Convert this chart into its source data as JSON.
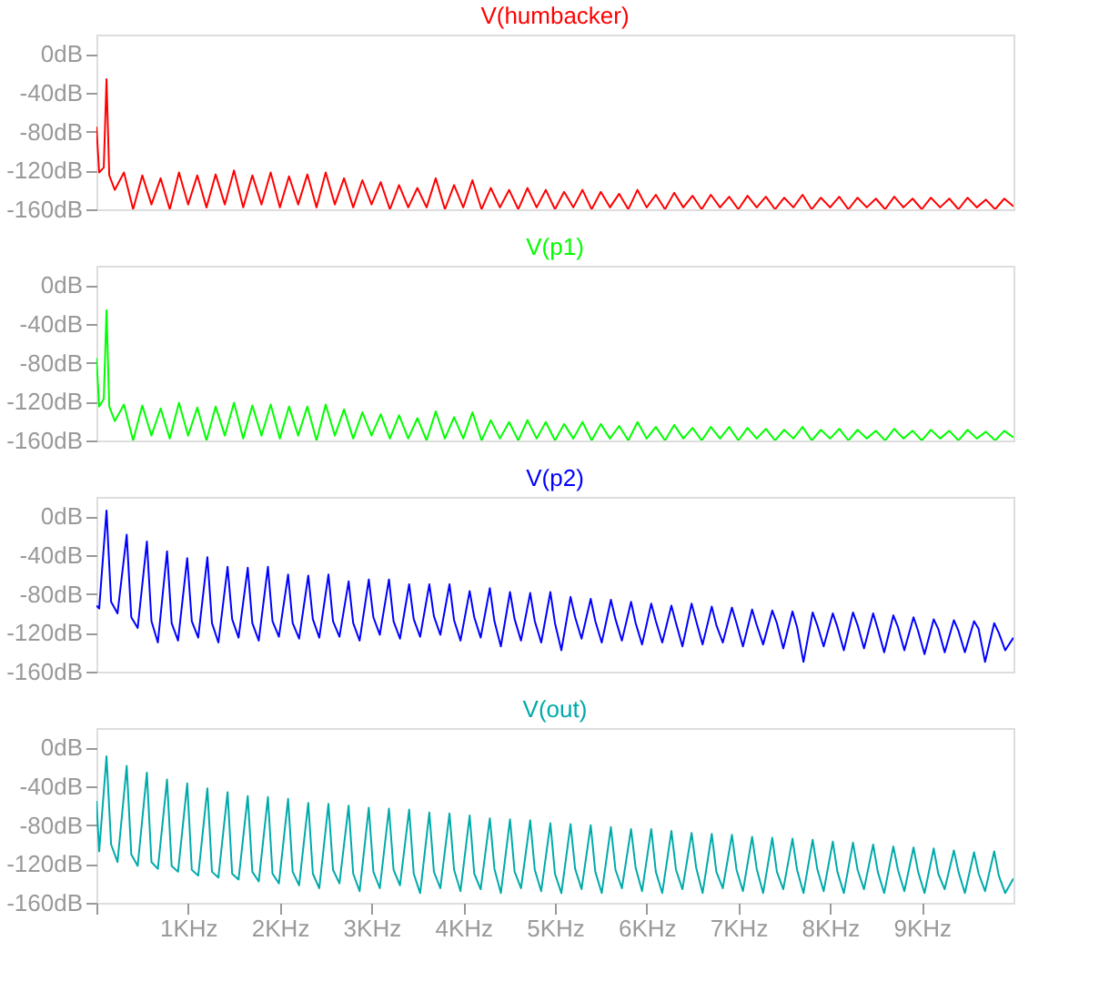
{
  "chart_data": [
    {
      "type": "line",
      "title": "V(humbacker)",
      "xlim": [
        0,
        10
      ],
      "ylim": [
        -160,
        20
      ],
      "yticks": [
        {
          "value": -160,
          "label": "-160dB"
        },
        {
          "value": -120,
          "label": "-120dB"
        },
        {
          "value": -80,
          "label": "-80dB"
        },
        {
          "value": -40,
          "label": "-40dB"
        },
        {
          "value": 0,
          "label": "0dB"
        }
      ],
      "tick_labels": "y",
      "grid": false,
      "line_style": "solid",
      "x": [
        0,
        0.03,
        0.08,
        0.11,
        0.14,
        0.2,
        0.3,
        0.4,
        0.5,
        0.6,
        0.7,
        0.8,
        0.9,
        1.0,
        1.1,
        1.2,
        1.3,
        1.4,
        1.5,
        1.6,
        1.7,
        1.8,
        1.9,
        2.0,
        2.1,
        2.2,
        2.3,
        2.4,
        2.5,
        2.6,
        2.7,
        2.8,
        2.9,
        3.0,
        3.1,
        3.2,
        3.3,
        3.4,
        3.5,
        3.6,
        3.7,
        3.8,
        3.9,
        4.0,
        4.1,
        4.2,
        4.3,
        4.4,
        4.5,
        4.6,
        4.7,
        4.8,
        4.9,
        5.0,
        5.1,
        5.2,
        5.3,
        5.4,
        5.5,
        5.6,
        5.7,
        5.8,
        5.9,
        6.0,
        6.1,
        6.2,
        6.3,
        6.4,
        6.5,
        6.6,
        6.7,
        6.8,
        6.9,
        7.0,
        7.1,
        7.2,
        7.3,
        7.4,
        7.5,
        7.6,
        7.7,
        7.8,
        7.9,
        8.0,
        8.1,
        8.2,
        8.3,
        8.4,
        8.5,
        8.6,
        8.7,
        8.8,
        8.9,
        9.0,
        9.1,
        9.2,
        9.3,
        9.4,
        9.5,
        9.6,
        9.7,
        9.8,
        9.9,
        10.0
      ],
      "series": [
        {
          "color": "#ff0000",
          "values": [
            -75,
            -122,
            -117,
            -26,
            -125,
            -140,
            -122,
            -160,
            -125,
            -155,
            -128,
            -160,
            -122,
            -155,
            -125,
            -158,
            -124,
            -155,
            -120,
            -158,
            -125,
            -155,
            -122,
            -158,
            -126,
            -155,
            -124,
            -158,
            -122,
            -155,
            -128,
            -158,
            -130,
            -155,
            -132,
            -160,
            -135,
            -158,
            -138,
            -158,
            -128,
            -160,
            -135,
            -158,
            -130,
            -160,
            -138,
            -158,
            -140,
            -160,
            -138,
            -158,
            -140,
            -160,
            -142,
            -158,
            -140,
            -160,
            -142,
            -158,
            -144,
            -160,
            -140,
            -158,
            -145,
            -160,
            -143,
            -158,
            -146,
            -160,
            -145,
            -158,
            -147,
            -160,
            -146,
            -158,
            -147,
            -160,
            -148,
            -158,
            -145,
            -160,
            -148,
            -158,
            -147,
            -160,
            -148,
            -158,
            -149,
            -160,
            -147,
            -158,
            -149,
            -160,
            -148,
            -158,
            -149,
            -160,
            -148,
            -158,
            -150,
            -160,
            -149,
            -157
          ]
        }
      ]
    },
    {
      "type": "line",
      "title": "V(p1)",
      "xlim": [
        0,
        10
      ],
      "ylim": [
        -160,
        20
      ],
      "yticks": [
        {
          "value": -160,
          "label": "-160dB"
        },
        {
          "value": -120,
          "label": "-120dB"
        },
        {
          "value": -80,
          "label": "-80dB"
        },
        {
          "value": -40,
          "label": "-40dB"
        },
        {
          "value": 0,
          "label": "0dB"
        }
      ],
      "tick_labels": "y",
      "grid": false,
      "line_style": "solid",
      "x": [
        0,
        0.03,
        0.08,
        0.11,
        0.14,
        0.2,
        0.3,
        0.4,
        0.5,
        0.6,
        0.7,
        0.8,
        0.9,
        1.0,
        1.1,
        1.2,
        1.3,
        1.4,
        1.5,
        1.6,
        1.7,
        1.8,
        1.9,
        2.0,
        2.1,
        2.2,
        2.3,
        2.4,
        2.5,
        2.6,
        2.7,
        2.8,
        2.9,
        3.0,
        3.1,
        3.2,
        3.3,
        3.4,
        3.5,
        3.6,
        3.7,
        3.8,
        3.9,
        4.0,
        4.1,
        4.2,
        4.3,
        4.4,
        4.5,
        4.6,
        4.7,
        4.8,
        4.9,
        5.0,
        5.1,
        5.2,
        5.3,
        5.4,
        5.5,
        5.6,
        5.7,
        5.8,
        5.9,
        6.0,
        6.1,
        6.2,
        6.3,
        6.4,
        6.5,
        6.6,
        6.7,
        6.8,
        6.9,
        7.0,
        7.1,
        7.2,
        7.3,
        7.4,
        7.5,
        7.6,
        7.7,
        7.8,
        7.9,
        8.0,
        8.1,
        8.2,
        8.3,
        8.4,
        8.5,
        8.6,
        8.7,
        8.8,
        8.9,
        9.0,
        9.1,
        9.2,
        9.3,
        9.4,
        9.5,
        9.6,
        9.7,
        9.8,
        9.9,
        10.0
      ],
      "series": [
        {
          "color": "#00ff00",
          "values": [
            -75,
            -125,
            -117,
            -26,
            -125,
            -140,
            -123,
            -160,
            -124,
            -155,
            -127,
            -158,
            -121,
            -155,
            -126,
            -160,
            -125,
            -155,
            -121,
            -158,
            -124,
            -155,
            -123,
            -158,
            -125,
            -155,
            -125,
            -160,
            -123,
            -155,
            -128,
            -158,
            -131,
            -155,
            -133,
            -158,
            -134,
            -158,
            -137,
            -160,
            -130,
            -158,
            -136,
            -158,
            -131,
            -160,
            -139,
            -158,
            -141,
            -160,
            -139,
            -158,
            -141,
            -160,
            -143,
            -158,
            -141,
            -160,
            -143,
            -158,
            -145,
            -160,
            -141,
            -158,
            -146,
            -160,
            -144,
            -158,
            -147,
            -160,
            -146,
            -158,
            -146,
            -160,
            -147,
            -158,
            -148,
            -160,
            -149,
            -158,
            -146,
            -160,
            -149,
            -158,
            -148,
            -160,
            -149,
            -158,
            -150,
            -160,
            -148,
            -158,
            -150,
            -160,
            -149,
            -158,
            -150,
            -160,
            -149,
            -158,
            -151,
            -160,
            -150,
            -157
          ]
        }
      ]
    },
    {
      "type": "line",
      "title": "V(p2)",
      "xlim": [
        0,
        10
      ],
      "ylim": [
        -160,
        20
      ],
      "yticks": [
        {
          "value": -160,
          "label": "-160dB"
        },
        {
          "value": -120,
          "label": "-120dB"
        },
        {
          "value": -80,
          "label": "-80dB"
        },
        {
          "value": -40,
          "label": "-40dB"
        },
        {
          "value": 0,
          "label": "0dB"
        }
      ],
      "tick_labels": "y",
      "grid": false,
      "line_style": "solid",
      "x": [
        0,
        0.03,
        0.11,
        0.16,
        0.23,
        0.33,
        0.38,
        0.45,
        0.55,
        0.6,
        0.67,
        0.77,
        0.82,
        0.89,
        0.99,
        1.04,
        1.11,
        1.21,
        1.26,
        1.33,
        1.43,
        1.48,
        1.55,
        1.65,
        1.7,
        1.77,
        1.87,
        1.92,
        1.99,
        2.09,
        2.14,
        2.21,
        2.31,
        2.36,
        2.43,
        2.53,
        2.58,
        2.65,
        2.75,
        2.8,
        2.87,
        2.97,
        3.02,
        3.09,
        3.19,
        3.24,
        3.31,
        3.41,
        3.46,
        3.53,
        3.63,
        3.68,
        3.75,
        3.85,
        3.9,
        3.97,
        4.07,
        4.12,
        4.19,
        4.29,
        4.34,
        4.41,
        4.51,
        4.56,
        4.63,
        4.73,
        4.78,
        4.85,
        4.95,
        5.0,
        5.07,
        5.17,
        5.22,
        5.29,
        5.39,
        5.44,
        5.51,
        5.61,
        5.66,
        5.73,
        5.83,
        5.88,
        5.95,
        6.05,
        6.1,
        6.17,
        6.27,
        6.32,
        6.39,
        6.49,
        6.54,
        6.61,
        6.71,
        6.76,
        6.83,
        6.93,
        6.98,
        7.05,
        7.15,
        7.2,
        7.27,
        7.37,
        7.42,
        7.49,
        7.59,
        7.64,
        7.71,
        7.81,
        7.86,
        7.93,
        8.03,
        8.08,
        8.15,
        8.25,
        8.3,
        8.37,
        8.47,
        8.52,
        8.59,
        8.69,
        8.74,
        8.81,
        8.91,
        8.96,
        9.03,
        9.13,
        9.18,
        9.25,
        9.35,
        9.4,
        9.47,
        9.57,
        9.62,
        9.69,
        9.79,
        9.84,
        9.91,
        10.0
      ],
      "series": [
        {
          "color": "#0000ff",
          "values": [
            -92,
            -95,
            6,
            -88,
            -100,
            -19,
            -104,
            -115,
            -26,
            -108,
            -130,
            -36,
            -110,
            -128,
            -43,
            -108,
            -125,
            -42,
            -110,
            -130,
            -52,
            -106,
            -125,
            -53,
            -110,
            -128,
            -52,
            -108,
            -124,
            -60,
            -110,
            -126,
            -61,
            -106,
            -125,
            -60,
            -108,
            -124,
            -67,
            -110,
            -128,
            -65,
            -104,
            -122,
            -65,
            -108,
            -126,
            -70,
            -106,
            -124,
            -70,
            -103,
            -122,
            -70,
            -107,
            -128,
            -77,
            -104,
            -125,
            -74,
            -108,
            -134,
            -78,
            -106,
            -128,
            -79,
            -108,
            -130,
            -78,
            -110,
            -138,
            -83,
            -104,
            -126,
            -85,
            -108,
            -130,
            -86,
            -106,
            -128,
            -88,
            -110,
            -132,
            -90,
            -108,
            -130,
            -92,
            -110,
            -134,
            -90,
            -108,
            -132,
            -93,
            -112,
            -130,
            -94,
            -110,
            -134,
            -96,
            -112,
            -132,
            -97,
            -110,
            -136,
            -98,
            -114,
            -150,
            -99,
            -112,
            -134,
            -100,
            -114,
            -138,
            -99,
            -112,
            -136,
            -100,
            -116,
            -140,
            -102,
            -114,
            -138,
            -104,
            -118,
            -142,
            -106,
            -116,
            -140,
            -107,
            -118,
            -140,
            -108,
            -116,
            -150,
            -110,
            -120,
            -138,
            -125
          ]
        }
      ]
    },
    {
      "type": "line",
      "title": "V(out)",
      "xlim": [
        0,
        10
      ],
      "xticks": [
        {
          "value": 0,
          "label": null
        },
        {
          "value": 1,
          "label": "1KHz"
        },
        {
          "value": 2,
          "label": "2KHz"
        },
        {
          "value": 3,
          "label": "3KHz"
        },
        {
          "value": 4,
          "label": "4KHz"
        },
        {
          "value": 5,
          "label": "5KHz"
        },
        {
          "value": 6,
          "label": "6KHz"
        },
        {
          "value": 7,
          "label": "7KHz"
        },
        {
          "value": 8,
          "label": "8KHz"
        },
        {
          "value": 9,
          "label": "9KHz"
        }
      ],
      "ylim": [
        -160,
        20
      ],
      "yticks": [
        {
          "value": -160,
          "label": "-160dB"
        },
        {
          "value": -120,
          "label": "-120dB"
        },
        {
          "value": -80,
          "label": "-80dB"
        },
        {
          "value": -40,
          "label": "-40dB"
        },
        {
          "value": 0,
          "label": "0dB"
        }
      ],
      "grid": false,
      "line_style": "solid",
      "x": [
        0,
        0.03,
        0.11,
        0.16,
        0.23,
        0.33,
        0.38,
        0.45,
        0.55,
        0.6,
        0.67,
        0.77,
        0.82,
        0.89,
        0.99,
        1.04,
        1.11,
        1.21,
        1.26,
        1.33,
        1.43,
        1.48,
        1.55,
        1.65,
        1.7,
        1.77,
        1.87,
        1.92,
        1.99,
        2.09,
        2.14,
        2.21,
        2.31,
        2.36,
        2.43,
        2.53,
        2.58,
        2.65,
        2.75,
        2.8,
        2.87,
        2.97,
        3.02,
        3.09,
        3.19,
        3.24,
        3.31,
        3.41,
        3.46,
        3.53,
        3.63,
        3.68,
        3.75,
        3.85,
        3.9,
        3.97,
        4.07,
        4.12,
        4.19,
        4.29,
        4.34,
        4.41,
        4.51,
        4.56,
        4.63,
        4.73,
        4.78,
        4.85,
        4.95,
        5.0,
        5.07,
        5.17,
        5.22,
        5.29,
        5.39,
        5.44,
        5.51,
        5.61,
        5.66,
        5.73,
        5.83,
        5.88,
        5.95,
        6.05,
        6.1,
        6.17,
        6.27,
        6.32,
        6.39,
        6.49,
        6.54,
        6.61,
        6.71,
        6.76,
        6.83,
        6.93,
        6.98,
        7.05,
        7.15,
        7.2,
        7.27,
        7.37,
        7.42,
        7.49,
        7.59,
        7.64,
        7.71,
        7.81,
        7.86,
        7.93,
        8.03,
        8.08,
        8.15,
        8.25,
        8.3,
        8.37,
        8.47,
        8.52,
        8.59,
        8.69,
        8.74,
        8.81,
        8.91,
        8.96,
        9.03,
        9.13,
        9.18,
        9.25,
        9.35,
        9.4,
        9.47,
        9.57,
        9.62,
        9.69,
        9.79,
        9.84,
        9.91,
        10.0
      ],
      "series": [
        {
          "color": "#00aaaa",
          "values": [
            -55,
            -107,
            -9,
            -100,
            -118,
            -19,
            -110,
            -122,
            -26,
            -118,
            -125,
            -33,
            -122,
            -128,
            -37,
            -126,
            -132,
            -42,
            -128,
            -134,
            -46,
            -130,
            -136,
            -50,
            -128,
            -138,
            -51,
            -130,
            -140,
            -53,
            -128,
            -142,
            -57,
            -130,
            -145,
            -58,
            -126,
            -140,
            -60,
            -130,
            -148,
            -62,
            -128,
            -145,
            -63,
            -126,
            -142,
            -64,
            -130,
            -150,
            -67,
            -128,
            -145,
            -68,
            -126,
            -148,
            -70,
            -130,
            -146,
            -73,
            -125,
            -150,
            -74,
            -128,
            -145,
            -75,
            -126,
            -148,
            -78,
            -130,
            -150,
            -79,
            -125,
            -146,
            -80,
            -128,
            -150,
            -82,
            -126,
            -145,
            -84,
            -124,
            -148,
            -84,
            -128,
            -150,
            -86,
            -126,
            -146,
            -88,
            -124,
            -150,
            -89,
            -128,
            -145,
            -90,
            -126,
            -148,
            -92,
            -125,
            -150,
            -93,
            -128,
            -146,
            -94,
            -126,
            -150,
            -95,
            -125,
            -148,
            -97,
            -128,
            -150,
            -98,
            -126,
            -146,
            -100,
            -128,
            -150,
            -102,
            -126,
            -148,
            -103,
            -128,
            -150,
            -104,
            -130,
            -146,
            -106,
            -128,
            -150,
            -108,
            -130,
            -148,
            -107,
            -132,
            -150,
            -135
          ]
        }
      ]
    }
  ]
}
